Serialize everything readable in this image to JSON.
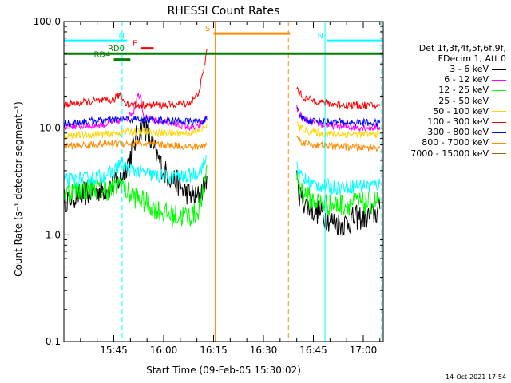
{
  "chart_data": {
    "type": "line",
    "title": "RHESSI Count Rates",
    "xlabel": "Start Time (09-Feb-05 15:30:02)",
    "ylabel": "Count Rate (s⁻¹ detector segment⁻¹)",
    "x_unit": "minutes after 15:30:02",
    "xlim": [
      0,
      96
    ],
    "ylim": [
      0.1,
      100
    ],
    "yscale": "log",
    "x_ticks": [
      {
        "x": 15,
        "label": "15:45"
      },
      {
        "x": 30,
        "label": "16:00"
      },
      {
        "x": 45,
        "label": "16:15"
      },
      {
        "x": 60,
        "label": "16:30"
      },
      {
        "x": 75,
        "label": "16:45"
      },
      {
        "x": 90,
        "label": "17:00"
      }
    ],
    "y_ticks": [
      {
        "y": 0.1,
        "label": "0.1"
      },
      {
        "y": 1,
        "label": "1.0"
      },
      {
        "y": 10,
        "label": "10.0"
      },
      {
        "y": 100,
        "label": "100.0"
      }
    ],
    "grid": false,
    "legend_placement": "right",
    "legend_header": [
      "Det 1f,3f,4f,5f,6f,9f,",
      "FDecim 1, Att 0"
    ],
    "series": [
      {
        "name": "3 - 6 keV",
        "color": "#000000",
        "segments": [
          {
            "x": [
              0,
              3,
              6,
              9,
              12,
              15,
              17,
              20,
              22,
              24,
              26,
              28,
              30,
              32,
              34,
              36,
              38,
              40,
              42,
              43
            ],
            "y": [
              2.1,
              2.3,
              2.4,
              2.6,
              2.7,
              2.9,
              3.3,
              5.5,
              8.5,
              11,
              7.5,
              5.5,
              4,
              3.5,
              3.1,
              2.6,
              2.4,
              2.2,
              2.8,
              3.6
            ]
          },
          {
            "x": [
              70,
              71,
              73,
              75,
              77,
              79,
              80,
              82,
              84,
              86,
              88,
              90,
              92,
              93,
              94,
              95
            ],
            "y": [
              3.1,
              2.3,
              1.9,
              1.7,
              1.6,
              1.45,
              1.35,
              1.3,
              1.25,
              1.35,
              1.45,
              1.45,
              1.5,
              1.55,
              1.6,
              1.75
            ]
          }
        ]
      },
      {
        "name": "6 - 12 keV",
        "color": "#ff00ff",
        "segments": [
          {
            "x": [
              0,
              4,
              8,
              12,
              16,
              19,
              21,
              22,
              23,
              24,
              26,
              28,
              30,
              32,
              34,
              36,
              38,
              40,
              42,
              43
            ],
            "y": [
              10.5,
              10.5,
              10.6,
              10.8,
              11.5,
              12.5,
              14.5,
              20,
              21,
              13,
              12,
              11.5,
              11.5,
              11.2,
              10.8,
              10.5,
              10.2,
              10,
              11.5,
              13
            ]
          },
          {
            "x": [
              70,
              71,
              72,
              74,
              76,
              78,
              80,
              82,
              84,
              86,
              88,
              90,
              92,
              93,
              94,
              95
            ],
            "y": [
              15.5,
              13.5,
              12,
              11.5,
              11,
              10.8,
              10.5,
              10.5,
              10.3,
              10.3,
              10.2,
              10.2,
              10.1,
              10.1,
              10.2,
              10.3
            ]
          }
        ]
      },
      {
        "name": "12 - 25 keV",
        "color": "#00ff00",
        "segments": [
          {
            "x": [
              0,
              4,
              8,
              12,
              15,
              17,
              19,
              22,
              26,
              30,
              34,
              36,
              38,
              40,
              42,
              43
            ],
            "y": [
              2.5,
              2.6,
              2.7,
              2.7,
              2.6,
              3.2,
              2.5,
              2.2,
              1.9,
              1.6,
              1.5,
              1.5,
              1.5,
              1.6,
              2.5,
              4.5
            ]
          },
          {
            "x": [
              70,
              71,
              73,
              75,
              77,
              79,
              80,
              82,
              84,
              86,
              88,
              90,
              92,
              93,
              94,
              95
            ],
            "y": [
              3.6,
              2.8,
              2.3,
              2.1,
              2,
              1.95,
              1.9,
              1.9,
              1.95,
              1.95,
              2,
              2,
              2,
              2.05,
              2.05,
              2.1
            ]
          }
        ]
      },
      {
        "name": "25 - 50 keV",
        "color": "#00ffff",
        "segments": [
          {
            "x": [
              0,
              4,
              8,
              12,
              15,
              17,
              19,
              21,
              24,
              27,
              30,
              33,
              36,
              38,
              40,
              42,
              43
            ],
            "y": [
              3.2,
              3.3,
              3.4,
              3.6,
              3.9,
              4.8,
              4.2,
              4.0,
              3.8,
              3.6,
              3.5,
              3.5,
              3.5,
              3.6,
              3.9,
              4.5,
              5.5
            ]
          },
          {
            "x": [
              70,
              71,
              73,
              75,
              77,
              79,
              80,
              82,
              84,
              86,
              88,
              90,
              92,
              93,
              94,
              95
            ],
            "y": [
              4.8,
              3.6,
              3.2,
              3,
              2.9,
              2.9,
              2.8,
              2.8,
              2.85,
              2.85,
              2.9,
              2.9,
              2.9,
              2.95,
              2.95,
              3
            ]
          }
        ]
      },
      {
        "name": "50 - 100 keV",
        "color": "#ffd700",
        "segments": [
          {
            "x": [
              0,
              4,
              8,
              12,
              15,
              18,
              21,
              24,
              27,
              30,
              33,
              36,
              38,
              40,
              42,
              43
            ],
            "y": [
              8.5,
              8.6,
              8.7,
              8.8,
              8.9,
              9.2,
              9.3,
              9.2,
              9.1,
              9,
              9,
              9,
              9,
              9.2,
              9.8,
              11
            ]
          },
          {
            "x": [
              70,
              71,
              73,
              75,
              77,
              79,
              80,
              82,
              84,
              86,
              88,
              90,
              92,
              93,
              94,
              95
            ],
            "y": [
              11,
              10,
              9.5,
              9.2,
              9,
              8.9,
              8.9,
              8.8,
              8.8,
              8.8,
              8.8,
              8.8,
              8.8,
              8.8,
              8.8,
              8.9
            ]
          }
        ]
      },
      {
        "name": "100 - 300 keV",
        "color": "#ff0000",
        "segments": [
          {
            "x": [
              0,
              3,
              6,
              9,
              12,
              15,
              17,
              18,
              20,
              22,
              24,
              26,
              28,
              30,
              32,
              34,
              36,
              38,
              40,
              41,
              42,
              43
            ],
            "y": [
              16.5,
              17,
              17.5,
              18,
              18,
              18.5,
              21,
              18,
              16.5,
              16.5,
              16.5,
              16.5,
              16.5,
              16.5,
              16.5,
              16.8,
              17,
              17.5,
              20,
              25,
              34,
              55
            ]
          },
          {
            "x": [
              70,
              71,
              72,
              74,
              76,
              78,
              80,
              82,
              84,
              86,
              88,
              90,
              92,
              93,
              94,
              95
            ],
            "y": [
              24,
              21,
              19.5,
              18.5,
              18,
              17.5,
              17,
              16.8,
              16.6,
              16.5,
              16.5,
              16.4,
              16.3,
              16.3,
              16.2,
              16.2
            ]
          }
        ]
      },
      {
        "name": "300 - 800 keV",
        "color": "#0000ff",
        "segments": [
          {
            "x": [
              0,
              4,
              8,
              12,
              16,
              20,
              24,
              28,
              32,
              36,
              38,
              40,
              42,
              43
            ],
            "y": [
              11,
              11.3,
              11.6,
              11.8,
              12,
              12.1,
              12,
              11.9,
              11.8,
              11.6,
              11.5,
              11.5,
              11.7,
              12
            ]
          },
          {
            "x": [
              70,
              71,
              73,
              75,
              77,
              79,
              80,
              82,
              84,
              86,
              88,
              90,
              92,
              93,
              94,
              95
            ],
            "y": [
              15,
              13,
              12,
              11.8,
              11.6,
              11.5,
              11.5,
              11.4,
              11.4,
              11.3,
              11.3,
              11.3,
              11.2,
              11.2,
              11.2,
              11.2
            ]
          }
        ]
      },
      {
        "name": "800 - 7000 keV",
        "color": "#ff8c00",
        "segments": [
          {
            "x": [
              0,
              4,
              8,
              12,
              16,
              20,
              24,
              28,
              32,
              36,
              38,
              40,
              42,
              43
            ],
            "y": [
              6.8,
              6.9,
              7,
              7.1,
              7.2,
              7.2,
              7.1,
              7,
              6.9,
              6.8,
              6.7,
              6.7,
              6.8,
              7
            ]
          },
          {
            "x": [
              70,
              71,
              73,
              75,
              77,
              79,
              80,
              82,
              84,
              86,
              88,
              90,
              92,
              93,
              94,
              95
            ],
            "y": [
              8.5,
              7.6,
              7.2,
              7,
              6.9,
              6.8,
              6.8,
              6.7,
              6.7,
              6.7,
              6.6,
              6.6,
              6.6,
              6.6,
              6.6,
              6.6
            ]
          }
        ]
      },
      {
        "name": "7000 - 15000 keV",
        "color": "#8b6914",
        "segments": []
      }
    ],
    "annotations": [
      {
        "label": "N",
        "color": "#00ffff",
        "x": [
          0,
          19
        ],
        "y": 66
      },
      {
        "label": "N",
        "color": "#00ffff",
        "x": [
          79,
          96
        ],
        "y": 66
      },
      {
        "label": "F",
        "color": "#ff0000",
        "x": [
          23,
          27
        ],
        "y": 56
      },
      {
        "label": "RD0",
        "color": "#008000",
        "x": [
          0,
          96
        ],
        "y": 50
      },
      {
        "label": "RD4",
        "color": "#008000",
        "x": [
          15,
          20
        ],
        "y": 44
      },
      {
        "label": "S",
        "color": "#ff8c00",
        "x": [
          45,
          68
        ],
        "y": 77
      }
    ],
    "vlines": [
      {
        "x": 0,
        "color": "#00ffff",
        "style": "solid"
      },
      {
        "x": 17.5,
        "color": "#00ffff",
        "style": "dashed"
      },
      {
        "x": 45.5,
        "color": "#ff8c00",
        "style": "solid"
      },
      {
        "x": 67.5,
        "color": "#ff8c00",
        "style": "dashed"
      },
      {
        "x": 78.5,
        "color": "#00ffff",
        "style": "solid"
      },
      {
        "x": 95.5,
        "color": "#00ffff",
        "style": "dashed"
      }
    ]
  },
  "timestamp": "14-Oct-2021 17:54"
}
